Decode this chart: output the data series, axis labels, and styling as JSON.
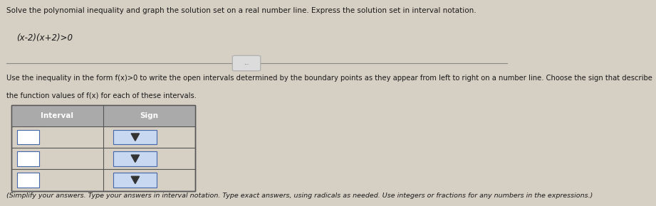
{
  "title_line": "Solve the polynomial inequality and graph the solution set on a real number line. Express the solution set in interval notation.",
  "equation": "(x-2)(x+2)>0",
  "separator_dots": "...",
  "instruction_line1": "Use the inequality in the form f(x)>0 to write the open intervals determined by the boundary points as they appear from left to right on a number line. Choose the sign that describe",
  "instruction_line2": "the function values of f(x) for each of these intervals.",
  "table_header_interval": "Interval",
  "table_header_sign": "Sign",
  "num_rows": 3,
  "footer_text": "(Simplify your answers. Type your answers in interval notation. Type exact answers, using radicals as needed. Use integers or fractions for any numbers in the expressions.)",
  "bg_color": "#d6cfc4",
  "header_bg": "#9e9e9e",
  "cell_input_color": "#ffffff",
  "dropdown_color": "#c8d8f0",
  "border_color": "#555555",
  "text_color": "#1a1a1a",
  "title_fontsize": 7.5,
  "eq_fontsize": 8.5,
  "instr_fontsize": 7.2,
  "table_fontsize": 7.5,
  "footer_fontsize": 6.8
}
